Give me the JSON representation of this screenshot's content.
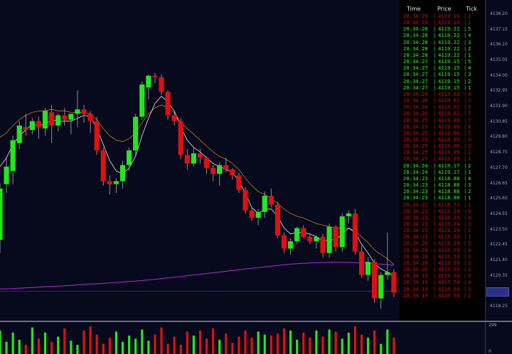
{
  "colors": {
    "background": "#07091c",
    "up": "#22e81a",
    "down": "#e01010",
    "ema_fast": "#e6e6e6",
    "ema_slow": "#c27c12",
    "ema_long": "#b42ad6",
    "cursor_box": "#2b2f8a"
  },
  "price_axis": {
    "labels": [
      "4138.20",
      "4137.15",
      "4136.10",
      "4135.05",
      "4134.00",
      "4132.95",
      "4131.90",
      "4130.85",
      "4129.80",
      "4128.75",
      "4127.70",
      "4126.65",
      "4125.60",
      "4124.55",
      "4123.50",
      "4122.45",
      "4121.40",
      "4120.35",
      "4119.30",
      "4118.25"
    ]
  },
  "volume_axis": {
    "top": "299",
    "bottom": "0"
  },
  "time_and_sales": {
    "headers": {
      "time": "Time",
      "price": "Price",
      "tick": "Tick"
    },
    "rows": [
      {
        "time": "20:34:29",
        "price": "4119.16",
        "tick": "2",
        "side": "down"
      },
      {
        "time": "20:34:29",
        "price": "4119.16",
        "tick": "1",
        "side": "down"
      },
      {
        "time": "20:34:28",
        "price": "4119.22",
        "tick": "5",
        "side": "up"
      },
      {
        "time": "20:34:28",
        "price": "4119.22",
        "tick": "4",
        "side": "up"
      },
      {
        "time": "20:34:28",
        "price": "4119.22",
        "tick": "3",
        "side": "up"
      },
      {
        "time": "20:34:28",
        "price": "4119.22",
        "tick": "2",
        "side": "up"
      },
      {
        "time": "20:34:28",
        "price": "4119.22",
        "tick": "1",
        "side": "up"
      },
      {
        "time": "20:34:27",
        "price": "4119.15",
        "tick": "5",
        "side": "up"
      },
      {
        "time": "20:34:27",
        "price": "4119.15",
        "tick": "4",
        "side": "up"
      },
      {
        "time": "20:34:27",
        "price": "4119.15",
        "tick": "3",
        "side": "up"
      },
      {
        "time": "20:34:27",
        "price": "4119.15",
        "tick": "2",
        "side": "up"
      },
      {
        "time": "20:34:27",
        "price": "4119.15",
        "tick": "1",
        "side": "up"
      },
      {
        "time": "20:34:26",
        "price": "4119.02",
        "tick": "4",
        "side": "down"
      },
      {
        "time": "20:34:26",
        "price": "4119.02",
        "tick": "3",
        "side": "down"
      },
      {
        "time": "20:34:26",
        "price": "4119.02",
        "tick": "2",
        "side": "down"
      },
      {
        "time": "20:34:26",
        "price": "4119.02",
        "tick": "1",
        "side": "down"
      },
      {
        "time": "20:34:25",
        "price": "4119.09",
        "tick": "7",
        "side": "down"
      },
      {
        "time": "20:34:25",
        "price": "4119.09",
        "tick": "6",
        "side": "down"
      },
      {
        "time": "20:34:25",
        "price": "4119.09",
        "tick": "5",
        "side": "down"
      },
      {
        "time": "20:34:25",
        "price": "4119.09",
        "tick": "4",
        "side": "down"
      },
      {
        "time": "20:34:25",
        "price": "4119.09",
        "tick": "3",
        "side": "down"
      },
      {
        "time": "20:34:25",
        "price": "4119.09",
        "tick": "2",
        "side": "down"
      },
      {
        "time": "20:34:25",
        "price": "4119.09",
        "tick": "1",
        "side": "down"
      },
      {
        "time": "20:34:24",
        "price": "4119.17",
        "tick": "2",
        "side": "up"
      },
      {
        "time": "20:34:24",
        "price": "4119.17",
        "tick": "1",
        "side": "up"
      },
      {
        "time": "20:34:23",
        "price": "4118.88",
        "tick": "4",
        "side": "up"
      },
      {
        "time": "20:34:23",
        "price": "4118.88",
        "tick": "3",
        "side": "up"
      },
      {
        "time": "20:34:23",
        "price": "4118.88",
        "tick": "2",
        "side": "up"
      },
      {
        "time": "20:34:23",
        "price": "4118.88",
        "tick": "1",
        "side": "up"
      },
      {
        "time": "20:34:22",
        "price": "4118.74",
        "tick": "1",
        "side": "down"
      },
      {
        "time": "20:34:21",
        "price": "4119.24",
        "tick": "6",
        "side": "down"
      },
      {
        "time": "20:34:21",
        "price": "4119.24",
        "tick": "4",
        "side": "down"
      },
      {
        "time": "20:34:21",
        "price": "4119.24",
        "tick": "3",
        "side": "down"
      },
      {
        "time": "20:34:21",
        "price": "4119.24",
        "tick": "2",
        "side": "down"
      },
      {
        "time": "20:34:21",
        "price": "4119.24",
        "tick": "1",
        "side": "down"
      },
      {
        "time": "20:34:20",
        "price": "4119.59",
        "tick": "5",
        "side": "down"
      },
      {
        "time": "20:34:20",
        "price": "4119.59",
        "tick": "4",
        "side": "down"
      },
      {
        "time": "20:34:20",
        "price": "4119.59",
        "tick": "3",
        "side": "down"
      },
      {
        "time": "20:34:20",
        "price": "4119.59",
        "tick": "2",
        "side": "down"
      },
      {
        "time": "20:34:20",
        "price": "4119.59",
        "tick": "1",
        "side": "down"
      },
      {
        "time": "20:34:19",
        "price": "4119.54",
        "tick": "5",
        "side": "down"
      },
      {
        "time": "20:34:19",
        "price": "4119.54",
        "tick": "4",
        "side": "down"
      },
      {
        "time": "20:34:19",
        "price": "4119.54",
        "tick": "3",
        "side": "down"
      },
      {
        "time": "20:34:19",
        "price": "4119.54",
        "tick": "2",
        "side": "down"
      }
    ]
  },
  "chart_data": {
    "type": "candlestick",
    "y_range": [
      4117.8,
      4138.6
    ],
    "candles": [
      {
        "o": 4122.8,
        "h": 4126.7,
        "l": 4121.9,
        "c": 4126.3
      },
      {
        "o": 4126.6,
        "h": 4128.5,
        "l": 4126.0,
        "c": 4127.8
      },
      {
        "o": 4127.5,
        "h": 4129.9,
        "l": 4126.6,
        "c": 4129.6
      },
      {
        "o": 4129.4,
        "h": 4130.9,
        "l": 4129.0,
        "c": 4130.6
      },
      {
        "o": 4130.5,
        "h": 4131.4,
        "l": 4129.9,
        "c": 4130.3
      },
      {
        "o": 4130.3,
        "h": 4131.1,
        "l": 4130.0,
        "c": 4130.9
      },
      {
        "o": 4130.9,
        "h": 4131.2,
        "l": 4129.7,
        "c": 4130.5
      },
      {
        "o": 4130.4,
        "h": 4131.8,
        "l": 4129.9,
        "c": 4131.6
      },
      {
        "o": 4131.5,
        "h": 4132.0,
        "l": 4129.4,
        "c": 4130.6
      },
      {
        "o": 4130.6,
        "h": 4131.4,
        "l": 4130.2,
        "c": 4131.3
      },
      {
        "o": 4131.3,
        "h": 4131.8,
        "l": 4130.6,
        "c": 4131.0
      },
      {
        "o": 4131.0,
        "h": 4131.4,
        "l": 4130.0,
        "c": 4131.4
      },
      {
        "o": 4131.4,
        "h": 4133.0,
        "l": 4130.5,
        "c": 4131.7
      },
      {
        "o": 4131.7,
        "h": 4132.0,
        "l": 4130.8,
        "c": 4131.4
      },
      {
        "o": 4131.4,
        "h": 4131.6,
        "l": 4130.1,
        "c": 4130.9
      },
      {
        "o": 4130.9,
        "h": 4131.2,
        "l": 4128.6,
        "c": 4128.9
      },
      {
        "o": 4128.9,
        "h": 4129.1,
        "l": 4126.5,
        "c": 4126.8
      },
      {
        "o": 4126.8,
        "h": 4127.2,
        "l": 4125.9,
        "c": 4126.6
      },
      {
        "o": 4126.6,
        "h": 4127.0,
        "l": 4126.0,
        "c": 4126.8
      },
      {
        "o": 4126.8,
        "h": 4128.2,
        "l": 4126.3,
        "c": 4127.9
      },
      {
        "o": 4127.9,
        "h": 4129.1,
        "l": 4127.5,
        "c": 4128.9
      },
      {
        "o": 4128.9,
        "h": 4131.4,
        "l": 4128.5,
        "c": 4131.2
      },
      {
        "o": 4131.2,
        "h": 4133.6,
        "l": 4131.0,
        "c": 4133.4
      },
      {
        "o": 4133.2,
        "h": 4134.1,
        "l": 4132.4,
        "c": 4134.0
      },
      {
        "o": 4134.0,
        "h": 4134.2,
        "l": 4133.5,
        "c": 4133.9
      },
      {
        "o": 4133.9,
        "h": 4134.1,
        "l": 4132.7,
        "c": 4132.9
      },
      {
        "o": 4132.9,
        "h": 4133.0,
        "l": 4131.0,
        "c": 4131.3
      },
      {
        "o": 4131.3,
        "h": 4131.5,
        "l": 4130.6,
        "c": 4130.9
      },
      {
        "o": 4130.9,
        "h": 4131.1,
        "l": 4128.3,
        "c": 4128.6
      },
      {
        "o": 4128.6,
        "h": 4129.0,
        "l": 4127.6,
        "c": 4128.0
      },
      {
        "o": 4128.0,
        "h": 4129.1,
        "l": 4127.8,
        "c": 4128.7
      },
      {
        "o": 4128.7,
        "h": 4129.0,
        "l": 4128.0,
        "c": 4128.4
      },
      {
        "o": 4128.4,
        "h": 4128.5,
        "l": 4127.3,
        "c": 4127.7
      },
      {
        "o": 4127.7,
        "h": 4127.9,
        "l": 4126.8,
        "c": 4127.3
      },
      {
        "o": 4127.3,
        "h": 4128.1,
        "l": 4126.5,
        "c": 4127.9
      },
      {
        "o": 4127.9,
        "h": 4128.4,
        "l": 4127.4,
        "c": 4127.6
      },
      {
        "o": 4127.6,
        "h": 4127.7,
        "l": 4126.9,
        "c": 4127.2
      },
      {
        "o": 4127.2,
        "h": 4127.4,
        "l": 4126.0,
        "c": 4126.2
      },
      {
        "o": 4126.2,
        "h": 4126.4,
        "l": 4124.6,
        "c": 4124.8
      },
      {
        "o": 4124.8,
        "h": 4125.0,
        "l": 4124.1,
        "c": 4124.3
      },
      {
        "o": 4124.3,
        "h": 4124.9,
        "l": 4123.8,
        "c": 4124.7
      },
      {
        "o": 4124.7,
        "h": 4126.1,
        "l": 4124.3,
        "c": 4125.8
      },
      {
        "o": 4125.8,
        "h": 4126.3,
        "l": 4125.0,
        "c": 4125.2
      },
      {
        "o": 4125.2,
        "h": 4125.4,
        "l": 4122.9,
        "c": 4123.1
      },
      {
        "o": 4123.1,
        "h": 4123.3,
        "l": 4121.9,
        "c": 4122.2
      },
      {
        "o": 4122.2,
        "h": 4122.9,
        "l": 4121.8,
        "c": 4122.7
      },
      {
        "o": 4122.7,
        "h": 4123.7,
        "l": 4122.5,
        "c": 4123.6
      },
      {
        "o": 4123.6,
        "h": 4123.8,
        "l": 4122.9,
        "c": 4123.0
      },
      {
        "o": 4123.0,
        "h": 4123.2,
        "l": 4122.5,
        "c": 4122.7
      },
      {
        "o": 4122.7,
        "h": 4123.1,
        "l": 4122.2,
        "c": 4123.0
      },
      {
        "o": 4123.0,
        "h": 4123.2,
        "l": 4121.6,
        "c": 4121.9
      },
      {
        "o": 4121.9,
        "h": 4123.9,
        "l": 4121.6,
        "c": 4123.7
      },
      {
        "o": 4123.7,
        "h": 4123.8,
        "l": 4122.0,
        "c": 4122.3
      },
      {
        "o": 4122.3,
        "h": 4124.6,
        "l": 4122.0,
        "c": 4124.4
      },
      {
        "o": 4124.4,
        "h": 4124.8,
        "l": 4123.9,
        "c": 4124.6
      },
      {
        "o": 4124.6,
        "h": 4124.9,
        "l": 4121.8,
        "c": 4122.0
      },
      {
        "o": 4122.0,
        "h": 4122.4,
        "l": 4120.2,
        "c": 4120.4
      },
      {
        "o": 4120.4,
        "h": 4121.6,
        "l": 4120.0,
        "c": 4121.3
      },
      {
        "o": 4121.3,
        "h": 4121.5,
        "l": 4118.5,
        "c": 4118.8
      },
      {
        "o": 4118.8,
        "h": 4120.6,
        "l": 4118.1,
        "c": 4120.4
      },
      {
        "o": 4120.4,
        "h": 4123.3,
        "l": 4120.1,
        "c": 4120.6
      },
      {
        "o": 4120.6,
        "h": 4120.8,
        "l": 4118.9,
        "c": 4119.2
      }
    ],
    "volumes": [
      230,
      120,
      210,
      140,
      90,
      260,
      150,
      210,
      120,
      170,
      250,
      130,
      90,
      230,
      270,
      190,
      100,
      160,
      220,
      120,
      180,
      150,
      240,
      130,
      190,
      260,
      100,
      170,
      90,
      220,
      180,
      230,
      150,
      250,
      140,
      200,
      110,
      170,
      230,
      160,
      220,
      190,
      180,
      200,
      250,
      230,
      140,
      210,
      160,
      230,
      170,
      240,
      220,
      150,
      210,
      270,
      190,
      160,
      230,
      100,
      240,
      160
    ],
    "ema_fast": [
      4127.8,
      4128.4,
      4129.3,
      4129.9,
      4130.3,
      4130.7,
      4130.6,
      4130.7,
      4131.0,
      4130.9,
      4130.9,
      4130.9,
      4131.1,
      4131.3,
      4131.2,
      4130.4,
      4129.3,
      4128.2,
      4127.5,
      4127.3,
      4127.7,
      4128.5,
      4129.9,
      4131.1,
      4132.1,
      4132.6,
      4132.2,
      4131.6,
      4130.5,
      4129.6,
      4129.1,
      4128.8,
      4128.4,
      4128.0,
      4127.8,
      4127.6,
      4127.4,
      4126.8,
      4126.0,
      4125.0,
      4124.6,
      4124.9,
      4124.9,
      4124.4,
      4123.6,
      4123.2,
      4123.3,
      4123.3,
      4123.2,
      4123.0,
      4122.7,
      4122.8,
      4122.8,
      4123.2,
      4123.6,
      4123.3,
      4122.5,
      4121.9,
      4121.2,
      4120.8,
      4120.6,
      4120.3
    ],
    "ema_slow": [
      4129.8,
      4130.1,
      4130.6,
      4131.0,
      4131.3,
      4131.5,
      4131.6,
      4131.6,
      4131.7,
      4131.6,
      4131.6,
      4131.5,
      4131.5,
      4131.5,
      4131.4,
      4131.0,
      4130.4,
      4129.9,
      4129.6,
      4129.5,
      4129.7,
      4130.1,
      4130.8,
      4131.4,
      4131.8,
      4132.0,
      4131.8,
      4131.5,
      4130.8,
      4130.4,
      4130.0,
      4129.6,
      4129.2,
      4128.8,
      4128.5,
      4128.3,
      4128.0,
      4127.6,
      4127.0,
      4126.5,
      4126.1,
      4125.9,
      4125.6,
      4125.3,
      4124.9,
      4124.6,
      4124.4,
      4124.3,
      4124.1,
      4123.9,
      4123.8,
      4123.7,
      4123.6,
      4123.6,
      4123.6,
      4123.4,
      4123.0,
      4122.6,
      4122.1,
      4121.8,
      4121.5,
      4121.1
    ],
    "ema_long": [
      4119.45,
      4119.45,
      4119.48,
      4119.5,
      4119.52,
      4119.55,
      4119.57,
      4119.6,
      4119.62,
      4119.64,
      4119.67,
      4119.7,
      4119.72,
      4119.75,
      4119.78,
      4119.8,
      4119.83,
      4119.86,
      4119.89,
      4119.92,
      4119.95,
      4119.98,
      4120.02,
      4120.06,
      4120.1,
      4120.15,
      4120.2,
      4120.25,
      4120.3,
      4120.35,
      4120.4,
      4120.45,
      4120.5,
      4120.55,
      4120.6,
      4120.65,
      4120.7,
      4120.75,
      4120.8,
      4120.85,
      4120.9,
      4120.95,
      4121.0,
      4121.05,
      4121.1,
      4121.14,
      4121.17,
      4121.2,
      4121.22,
      4121.24,
      4121.25,
      4121.26,
      4121.26,
      4121.26,
      4121.25,
      4121.24,
      4121.22,
      4121.2,
      4121.17,
      4121.14,
      4121.1,
      4121.06
    ]
  }
}
